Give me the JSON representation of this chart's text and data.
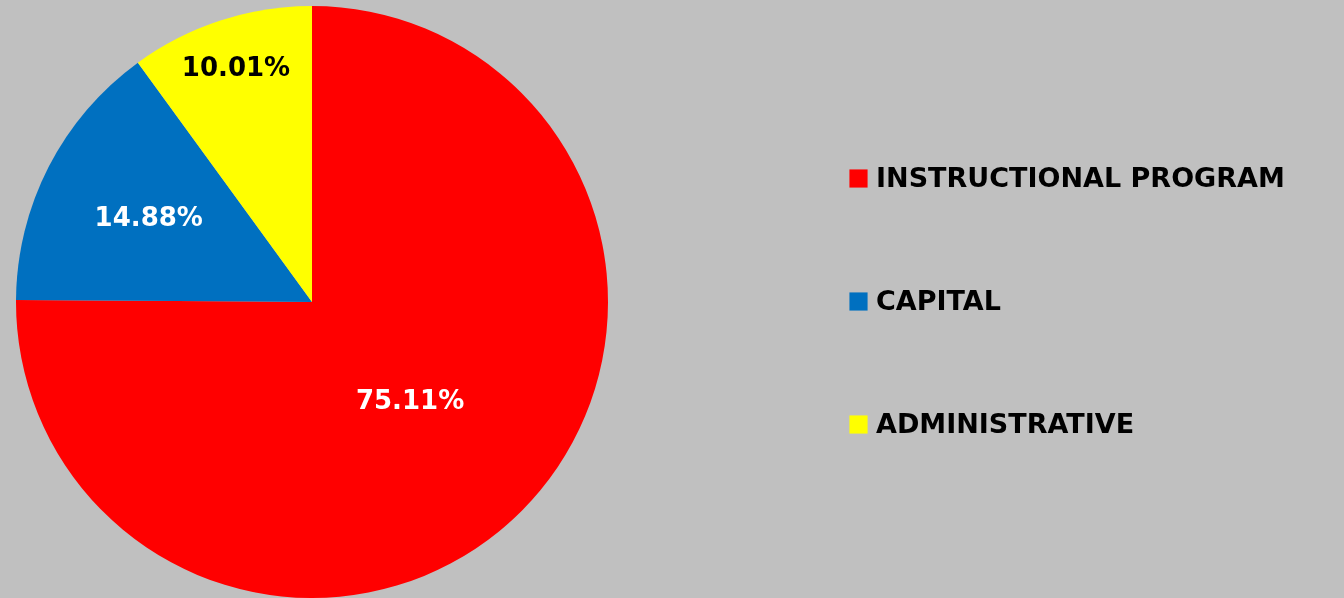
{
  "chart_data": {
    "type": "pie",
    "categories": [
      "INSTRUCTIONAL PROGRAM",
      "CAPITAL",
      "ADMINISTRATIVE"
    ],
    "values": [
      75.11,
      14.88,
      10.01
    ],
    "colors": [
      "#ff0000",
      "#0070c0",
      "#ffff00"
    ],
    "value_labels": [
      "75.11%",
      "14.88%",
      "10.01%"
    ],
    "legend": "right"
  }
}
